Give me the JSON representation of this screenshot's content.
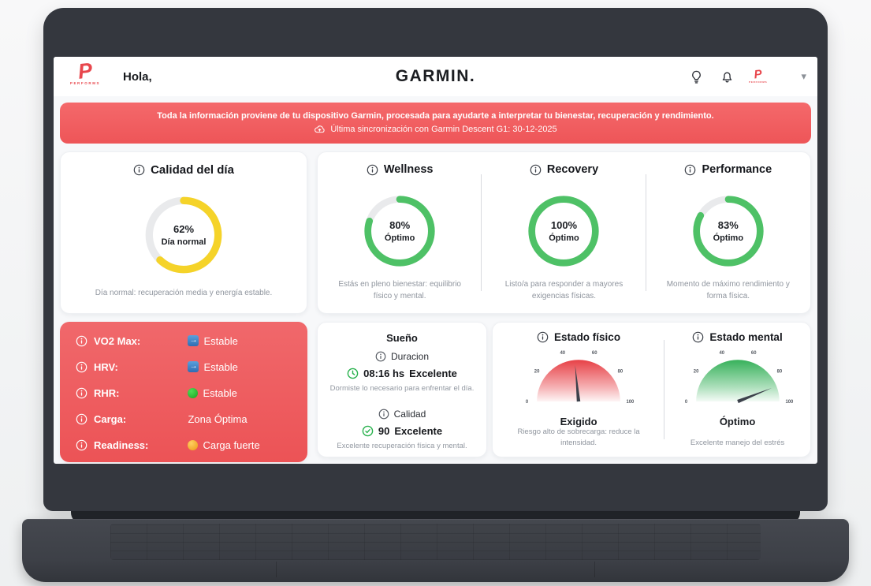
{
  "header": {
    "greeting": "Hola,",
    "brand": "GARMIN.",
    "logo_letter": "P",
    "logo_text": "PERFORMS",
    "profile_logo_letter": "P",
    "profile_logo_text": "PERFORMS"
  },
  "banner": {
    "message": "Toda la información proviene de tu dispositivo Garmin, procesada para ayudarte a interpretar tu bienestar, recuperación y rendimiento.",
    "sync": "Última sincronización con Garmin Descent G1: 30-12-2025"
  },
  "quality_card": {
    "title": "Calidad del día",
    "percent": 62,
    "value": "62%",
    "status": "Día normal",
    "note": "Día normal: recuperación media y energía estable.",
    "color": "#f5d329",
    "track": "#e9eaec"
  },
  "summary_cards": [
    {
      "title": "Wellness",
      "percent": 80,
      "value": "80%",
      "status": "Óptimo",
      "note": "Estás en pleno bienestar: equilibrio físico y mental.",
      "color": "#4ec166",
      "track": "#e9eaec"
    },
    {
      "title": "Recovery",
      "percent": 100,
      "value": "100%",
      "status": "Óptimo",
      "note": "Listo/a para responder a mayores exigencias físicas.",
      "color": "#4ec166",
      "track": "#e9eaec"
    },
    {
      "title": "Performance",
      "percent": 83,
      "value": "83%",
      "status": "Óptimo",
      "note": "Momento de máximo rendimiento y forma física.",
      "color": "#4ec166",
      "track": "#e9eaec"
    }
  ],
  "metrics_card": {
    "rows": [
      {
        "label": "VO2 Max:",
        "badge": "arrow-right",
        "value": "Estable"
      },
      {
        "label": "HRV:",
        "badge": "arrow-right",
        "value": "Estable"
      },
      {
        "label": "RHR:",
        "badge": "dot-green",
        "value": "Estable"
      },
      {
        "label": "Carga:",
        "badge": "none",
        "value": "Zona Óptima"
      },
      {
        "label": "Readiness:",
        "badge": "dot-orange",
        "value": "Carga fuerte"
      }
    ]
  },
  "sleep_card": {
    "title": "Sueño",
    "duration_label": "Duracion",
    "duration_value": "08:16 hs",
    "duration_status": "Excelente",
    "duration_note": "Dormiste lo necesario para enfrentar el día.",
    "quality_label": "Calidad",
    "quality_value": "90",
    "quality_status": "Excelente",
    "quality_note": "Excelente recuperación física y mental."
  },
  "gauges": [
    {
      "title": "Estado físico",
      "value": 47,
      "status": "Exigido",
      "note": "Riesgo alto de sobrecarga: reduce la intensidad.",
      "color": "#e6393f",
      "ticks": [
        "0",
        "20",
        "40",
        "60",
        "80",
        "100"
      ]
    },
    {
      "title": "Estado mental",
      "value": 88,
      "status": "Óptimo",
      "note": "Excelente manejo del estrés",
      "color": "#2fae54",
      "ticks": [
        "0",
        "20",
        "40",
        "60",
        "80",
        "100"
      ]
    }
  ]
}
